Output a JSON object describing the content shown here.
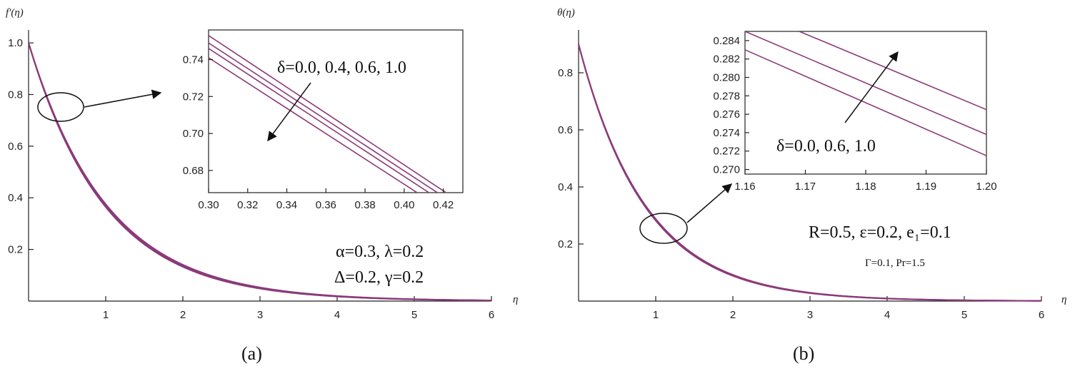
{
  "colors": {
    "curve": "#8b3a7a",
    "axis": "#222222",
    "background": "#ffffff"
  },
  "chart_data": [
    {
      "type": "line",
      "panel_label": "(a)",
      "xlabel": "η",
      "ylabel": "f'(η)",
      "xlim": [
        0,
        6
      ],
      "ylim": [
        0,
        1.05
      ],
      "x_ticks": [
        1,
        2,
        3,
        4,
        5,
        6
      ],
      "y_ticks": [
        0.2,
        0.4,
        0.6,
        0.8,
        1.0
      ],
      "x_tick_labels": [
        "1",
        "2",
        "3",
        "4",
        "5",
        "6"
      ],
      "y_tick_labels": [
        "0.2",
        "0.4",
        "0.6",
        "0.8",
        "1.0"
      ],
      "curve_model": {
        "form": "y0*exp(-k*x)",
        "y0": 1.0,
        "k_values": [
          0.98,
          0.99,
          1.0,
          1.01
        ]
      },
      "series": [
        {
          "x": [
            0,
            0.5,
            1,
            1.5,
            2,
            3,
            4,
            5,
            6
          ],
          "y": [
            1.0,
            0.61,
            0.37,
            0.23,
            0.14,
            0.05,
            0.02,
            0.01,
            0.0
          ]
        }
      ],
      "annotations": [
        "α=0.3, λ=0.2",
        "Δ=0.2, γ=0.2"
      ],
      "inset": {
        "xlim": [
          0.3,
          0.43
        ],
        "ylim": [
          0.668,
          0.756
        ],
        "x_ticks": [
          0.3,
          0.32,
          0.34,
          0.36,
          0.38,
          0.4,
          0.42
        ],
        "y_ticks": [
          0.68,
          0.7,
          0.72,
          0.74
        ],
        "x_tick_labels": [
          "0.30",
          "0.32",
          "0.34",
          "0.36",
          "0.38",
          "0.40",
          "0.42"
        ],
        "y_tick_labels": [
          "0.68",
          "0.70",
          "0.72",
          "0.74"
        ],
        "label": "δ=0.0, 0.4, 0.6, 1.0",
        "series": [
          {
            "name": "δ=0.0",
            "x": [
              0.3,
              0.43
            ],
            "y": [
              0.753,
              0.662
            ]
          },
          {
            "name": "δ=0.4",
            "x": [
              0.3,
              0.43
            ],
            "y": [
              0.749,
              0.659
            ]
          },
          {
            "name": "δ=0.6",
            "x": [
              0.3,
              0.43
            ],
            "y": [
              0.746,
              0.656
            ]
          },
          {
            "name": "δ=1.0",
            "x": [
              0.3,
              0.43
            ],
            "y": [
              0.741,
              0.652
            ]
          }
        ]
      }
    },
    {
      "type": "line",
      "panel_label": "(b)",
      "xlabel": "η",
      "ylabel": "θ(η)",
      "xlim": [
        0,
        6
      ],
      "ylim": [
        0,
        0.95
      ],
      "x_ticks": [
        1,
        2,
        3,
        4,
        5,
        6
      ],
      "y_ticks": [
        0.2,
        0.4,
        0.6,
        0.8
      ],
      "x_tick_labels": [
        "1",
        "2",
        "3",
        "4",
        "5",
        "6"
      ],
      "y_tick_labels": [
        "0.2",
        "0.4",
        "0.6",
        "0.8"
      ],
      "curve_model": {
        "form": "y0*exp(-k*x)",
        "y0": 0.9,
        "k_values": [
          1.14,
          1.15,
          1.16
        ]
      },
      "series": [
        {
          "x": [
            0,
            0.5,
            1,
            1.5,
            2,
            3,
            4,
            5,
            6
          ],
          "y": [
            0.9,
            0.51,
            0.29,
            0.16,
            0.09,
            0.03,
            0.01,
            0.0,
            0.0
          ]
        }
      ],
      "annotations": [
        "R=0.5, ε=0.2, e₁=0.1",
        "Γ=0.1, Pr=1.5"
      ],
      "inset": {
        "xlim": [
          1.16,
          1.2
        ],
        "ylim": [
          0.2695,
          0.285
        ],
        "x_ticks": [
          1.16,
          1.17,
          1.18,
          1.19,
          1.2
        ],
        "y_ticks": [
          0.27,
          0.272,
          0.274,
          0.276,
          0.278,
          0.28,
          0.282,
          0.284
        ],
        "x_tick_labels": [
          "1.16",
          "1.17",
          "1.18",
          "1.19",
          "1.20"
        ],
        "y_tick_labels": [
          "0.270",
          "0.272",
          "0.274",
          "0.276",
          "0.278",
          "0.280",
          "0.282",
          "0.284"
        ],
        "label": "δ=0.0, 0.6, 1.0",
        "series": [
          {
            "name": "δ=0.0",
            "x": [
              1.16,
              1.2
            ],
            "y": [
              0.283,
              0.2715
            ]
          },
          {
            "name": "δ=0.6",
            "x": [
              1.16,
              1.2
            ],
            "y": [
              0.285,
              0.2738
            ]
          },
          {
            "name": "δ=1.0",
            "x": [
              1.169,
              1.2
            ],
            "y": [
              0.285,
              0.2765
            ]
          }
        ]
      }
    }
  ]
}
